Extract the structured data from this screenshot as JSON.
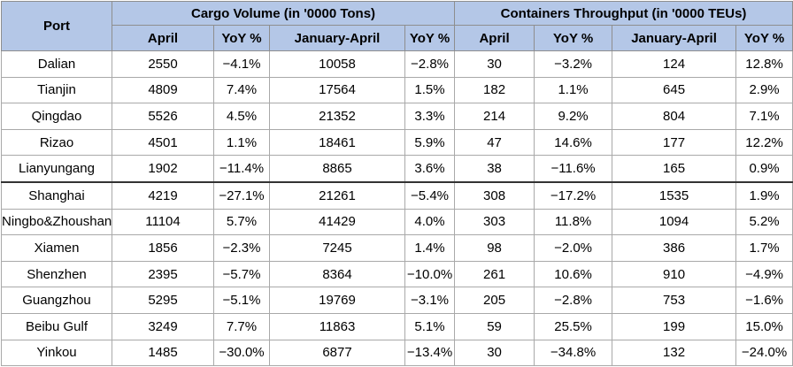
{
  "table": {
    "port_header": "Port",
    "group_cargo": "Cargo Volume (in '0000 Tons)",
    "group_containers": "Containers Throughput (in '0000 TEUs)",
    "sub_headers": [
      "April",
      "YoY %",
      "January-April",
      "YoY %",
      "April",
      "YoY %",
      "January-April",
      "YoY %"
    ],
    "rows": [
      {
        "port": "Dalian",
        "cargo_april": "2550",
        "cargo_april_yoy": "−4.1%",
        "cargo_ytd": "10058",
        "cargo_ytd_yoy": "−2.8%",
        "cont_april": "30",
        "cont_april_yoy": "−3.2%",
        "cont_ytd": "124",
        "cont_ytd_yoy": "12.8%"
      },
      {
        "port": "Tianjin",
        "cargo_april": "4809",
        "cargo_april_yoy": "7.4%",
        "cargo_ytd": "17564",
        "cargo_ytd_yoy": "1.5%",
        "cont_april": "182",
        "cont_april_yoy": "1.1%",
        "cont_ytd": "645",
        "cont_ytd_yoy": "2.9%"
      },
      {
        "port": "Qingdao",
        "cargo_april": "5526",
        "cargo_april_yoy": "4.5%",
        "cargo_ytd": "21352",
        "cargo_ytd_yoy": "3.3%",
        "cont_april": "214",
        "cont_april_yoy": "9.2%",
        "cont_ytd": "804",
        "cont_ytd_yoy": "7.1%"
      },
      {
        "port": "Rizao",
        "cargo_april": "4501",
        "cargo_april_yoy": "1.1%",
        "cargo_ytd": "18461",
        "cargo_ytd_yoy": "5.9%",
        "cont_april": "47",
        "cont_april_yoy": "14.6%",
        "cont_ytd": "177",
        "cont_ytd_yoy": "12.2%"
      },
      {
        "port": "Lianyungang",
        "cargo_april": "1902",
        "cargo_april_yoy": "−11.4%",
        "cargo_ytd": "8865",
        "cargo_ytd_yoy": "3.6%",
        "cont_april": "38",
        "cont_april_yoy": "−11.6%",
        "cont_ytd": "165",
        "cont_ytd_yoy": "0.9%"
      },
      {
        "port": "Shanghai",
        "cargo_april": "4219",
        "cargo_april_yoy": "−27.1%",
        "cargo_ytd": "21261",
        "cargo_ytd_yoy": "−5.4%",
        "cont_april": "308",
        "cont_april_yoy": "−17.2%",
        "cont_ytd": "1535",
        "cont_ytd_yoy": "1.9%"
      },
      {
        "port": "Ningbo&Zhoushan",
        "cargo_april": "11104",
        "cargo_april_yoy": "5.7%",
        "cargo_ytd": "41429",
        "cargo_ytd_yoy": "4.0%",
        "cont_april": "303",
        "cont_april_yoy": "11.8%",
        "cont_ytd": "1094",
        "cont_ytd_yoy": "5.2%"
      },
      {
        "port": "Xiamen",
        "cargo_april": "1856",
        "cargo_april_yoy": "−2.3%",
        "cargo_ytd": "7245",
        "cargo_ytd_yoy": "1.4%",
        "cont_april": "98",
        "cont_april_yoy": "−2.0%",
        "cont_ytd": "386",
        "cont_ytd_yoy": "1.7%"
      },
      {
        "port": "Shenzhen",
        "cargo_april": "2395",
        "cargo_april_yoy": "−5.7%",
        "cargo_ytd": "8364",
        "cargo_ytd_yoy": "−10.0%",
        "cont_april": "261",
        "cont_april_yoy": "10.6%",
        "cont_ytd": "910",
        "cont_ytd_yoy": "−4.9%"
      },
      {
        "port": "Guangzhou",
        "cargo_april": "5295",
        "cargo_april_yoy": "−5.1%",
        "cargo_ytd": "19769",
        "cargo_ytd_yoy": "−3.1%",
        "cont_april": "205",
        "cont_april_yoy": "−2.8%",
        "cont_ytd": "753",
        "cont_ytd_yoy": "−1.6%"
      },
      {
        "port": "Beibu Gulf",
        "cargo_april": "3249",
        "cargo_april_yoy": "7.7%",
        "cargo_ytd": "11863",
        "cargo_ytd_yoy": "5.1%",
        "cont_april": "59",
        "cont_april_yoy": "25.5%",
        "cont_ytd": "199",
        "cont_ytd_yoy": "15.0%"
      },
      {
        "port": "Yinkou",
        "cargo_april": "1485",
        "cargo_april_yoy": "−30.0%",
        "cargo_ytd": "6877",
        "cargo_ytd_yoy": "−13.4%",
        "cont_april": "30",
        "cont_april_yoy": "−34.8%",
        "cont_ytd": "132",
        "cont_ytd_yoy": "−24.0%"
      }
    ]
  },
  "colors": {
    "header_fill": "#b4c7e7",
    "grid_line": "#a9a9a9",
    "text": "#000000"
  }
}
